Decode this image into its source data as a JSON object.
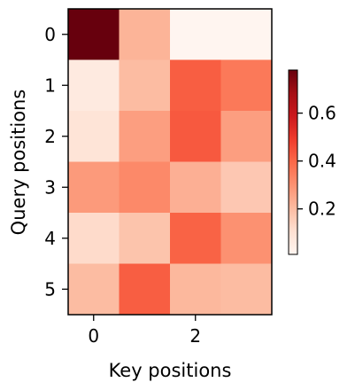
{
  "chart_data": {
    "type": "heatmap",
    "title": "",
    "xlabel": "Key positions",
    "ylabel": "Query positions",
    "x_ticks": [
      "0",
      "2"
    ],
    "x_tick_indices": [
      0,
      2
    ],
    "y_ticks": [
      "0",
      "1",
      "2",
      "3",
      "4",
      "5"
    ],
    "y_tick_indices": [
      0,
      1,
      2,
      3,
      4,
      5
    ],
    "rows": 6,
    "cols": 4,
    "values": [
      [
        0.78,
        0.22,
        0.01,
        0.01
      ],
      [
        0.06,
        0.2,
        0.42,
        0.36
      ],
      [
        0.09,
        0.27,
        0.43,
        0.27
      ],
      [
        0.28,
        0.32,
        0.23,
        0.17
      ],
      [
        0.12,
        0.18,
        0.41,
        0.3
      ],
      [
        0.2,
        0.42,
        0.21,
        0.2
      ]
    ],
    "colormap": "Reds",
    "vmin": 0.01,
    "vmax": 0.78,
    "colorbar": {
      "ticks": [
        0.2,
        0.4,
        0.6
      ],
      "tick_labels": [
        "0.2",
        "0.4",
        "0.6"
      ]
    },
    "colorbar_stops": [
      "#fff5f0",
      "#fee0d2",
      "#fcbba1",
      "#fc9272",
      "#fb6a4a",
      "#ef3b2c",
      "#cb181d",
      "#a50f15",
      "#67000d"
    ]
  }
}
